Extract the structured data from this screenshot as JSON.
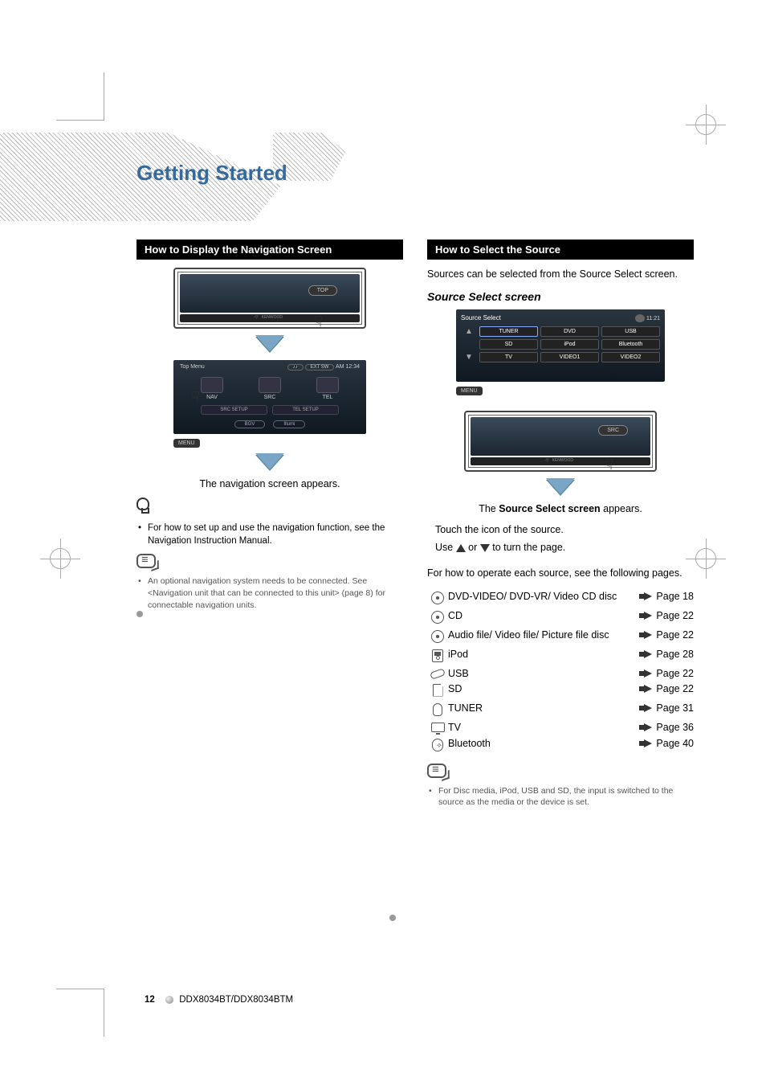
{
  "pageTitle": "Getting Started",
  "left": {
    "header": "How to Display the Navigation Screen",
    "frame1": {
      "topLabel": "TOP",
      "brand": "KENWOOD"
    },
    "topMenu": {
      "title": "Top Menu",
      "extsw": "EXT SW",
      "clock": "AM 12:34",
      "items": [
        "NAV",
        "SRC",
        "TEL"
      ],
      "lower": [
        "SRC SETUP",
        "TEL SETUP"
      ],
      "bottom": [
        "BGV",
        "Illumi"
      ],
      "menuBtn": "MENU"
    },
    "caption": "The navigation screen appears.",
    "tip": "For how to set up and use the navigation function, see the Navigation Instruction Manual.",
    "note": "An optional navigation system needs to be connected. See <Navigation unit that can be connected to this unit> (page 8) for connectable navigation units."
  },
  "right": {
    "header": "How to Select the Source",
    "intro": "Sources can be selected from the Source Select screen.",
    "subtitle": "Source Select screen",
    "sourceScreen": {
      "title": "Source  Select",
      "time": "11:21",
      "rows": [
        [
          "TUNER",
          "DVD",
          "USB"
        ],
        [
          "SD",
          "iPod",
          "Bluetooth"
        ],
        [
          "TV",
          "VIDEO1",
          "VIDEO2"
        ]
      ],
      "menuBtn": "MENU"
    },
    "frame2": {
      "srcLabel": "SRC",
      "brand": "KENWOOD"
    },
    "captionPrefix": "The ",
    "captionBold": "Source Select screen",
    "captionSuffix": " appears.",
    "instr1": "Touch the icon of the source.",
    "instr2a": "Use ",
    "instr2b": " or ",
    "instr2c": " to turn the page.",
    "listIntro": "For how to operate each source, see the following pages.",
    "sources": [
      {
        "icon": "disc",
        "label": "DVD-VIDEO/ DVD-VR/ Video CD disc",
        "page": "Page 18"
      },
      {
        "icon": "disc",
        "label": "CD",
        "page": "Page 22"
      },
      {
        "icon": "disc",
        "label": "Audio file/ Video file/ Picture file disc",
        "page": "Page 22"
      },
      {
        "icon": "ipod",
        "label": "iPod",
        "page": "Page 28"
      },
      {
        "icon": "usb",
        "label": "USB",
        "page": "Page 22"
      },
      {
        "icon": "sd",
        "label": "SD",
        "page": "Page 22"
      },
      {
        "icon": "tuner",
        "label": "TUNER",
        "page": "Page 31"
      },
      {
        "icon": "tv",
        "label": "TV",
        "page": "Page 36"
      },
      {
        "icon": "bt",
        "label": "Bluetooth",
        "page": "Page 40"
      }
    ],
    "footnote": "For Disc media, iPod, USB and SD, the input is switched to the source as the media or the device is set."
  },
  "footer": {
    "pageNum": "12",
    "model": "DDX8034BT/DDX8034BTM"
  },
  "colors": {
    "titleBlue": "#356a9e",
    "arrowBlue": "#7aa5c4",
    "headerBg": "#000000",
    "lcdDark": "#1a2530"
  }
}
